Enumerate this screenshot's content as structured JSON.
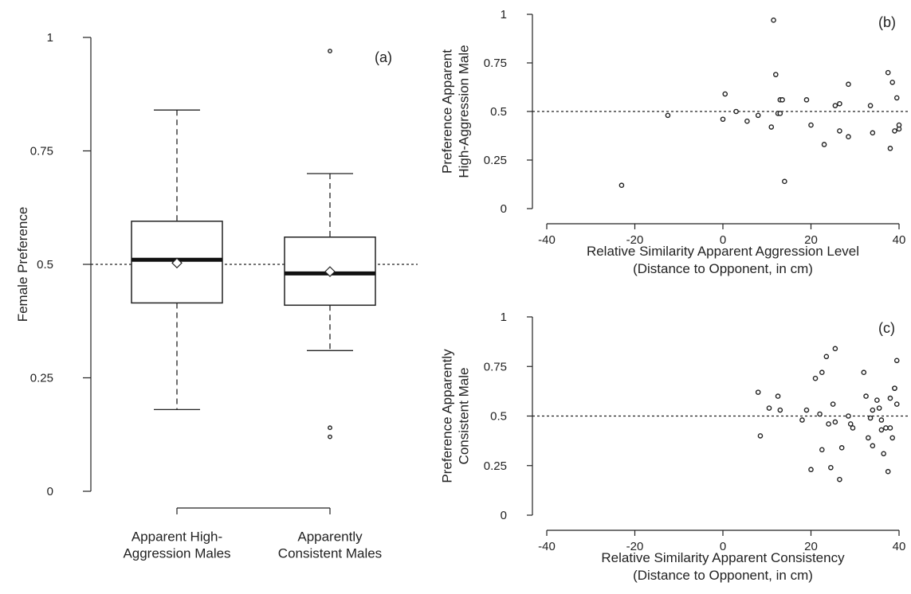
{
  "chart_data": [
    {
      "type": "box",
      "panel_label": "(a)",
      "xlabel": "",
      "ylabel": "Female Preference",
      "ylim": [
        0,
        1
      ],
      "yticks": [
        "0",
        "0.25",
        "0.5",
        "0.75",
        "1"
      ],
      "reference_line": 0.5,
      "categories": [
        [
          "Apparent High-",
          "Aggression Males"
        ],
        [
          "Apparently",
          "Consistent Males"
        ]
      ],
      "boxes": [
        {
          "min": 0.18,
          "q1": 0.415,
          "median": 0.51,
          "mean": 0.503,
          "q3": 0.595,
          "max": 0.84,
          "outliers": []
        },
        {
          "min": 0.31,
          "q1": 0.41,
          "median": 0.48,
          "mean": 0.484,
          "q3": 0.56,
          "max": 0.7,
          "outliers": [
            0.97,
            0.14,
            0.12
          ]
        }
      ]
    },
    {
      "type": "scatter",
      "panel_label": "(b)",
      "xlabel": [
        "Relative Similarity Apparent Aggression Level",
        "(Distance to Opponent, in cm)"
      ],
      "ylabel": [
        "Preference Apparent",
        "High-Aggression Male"
      ],
      "xlim": [
        -40,
        40
      ],
      "ylim": [
        0,
        1
      ],
      "xticks": [
        "-40",
        "-20",
        "0",
        "20",
        "40"
      ],
      "yticks": [
        "0",
        "0.25",
        "0.5",
        "0.75",
        "1"
      ],
      "reference_line": 0.5,
      "points": [
        [
          -23,
          0.12
        ],
        [
          -12.5,
          0.48
        ],
        [
          0,
          0.46
        ],
        [
          0.5,
          0.59
        ],
        [
          3,
          0.5
        ],
        [
          5.5,
          0.45
        ],
        [
          8,
          0.48
        ],
        [
          11,
          0.42
        ],
        [
          11.5,
          0.97
        ],
        [
          12,
          0.69
        ],
        [
          12.5,
          0.49
        ],
        [
          13,
          0.49
        ],
        [
          13,
          0.56
        ],
        [
          13.5,
          0.56
        ],
        [
          14,
          0.14
        ],
        [
          19,
          0.56
        ],
        [
          20,
          0.43
        ],
        [
          23,
          0.33
        ],
        [
          25.5,
          0.53
        ],
        [
          26.5,
          0.54
        ],
        [
          26.5,
          0.4
        ],
        [
          28.5,
          0.37
        ],
        [
          28.5,
          0.64
        ],
        [
          33.5,
          0.53
        ],
        [
          34,
          0.39
        ],
        [
          37.5,
          0.7
        ],
        [
          38,
          0.31
        ],
        [
          38.5,
          0.65
        ],
        [
          39,
          0.4
        ],
        [
          39.5,
          0.57
        ],
        [
          40,
          0.41
        ],
        [
          40,
          0.43
        ]
      ]
    },
    {
      "type": "scatter",
      "panel_label": "(c)",
      "xlabel": [
        "Relative Similarity Apparent Consistency",
        "(Distance to Opponent, in cm)"
      ],
      "ylabel": [
        "Preference Apparently",
        "Consistent Male"
      ],
      "xlim": [
        -40,
        40
      ],
      "ylim": [
        0,
        1
      ],
      "xticks": [
        "-40",
        "-20",
        "0",
        "20",
        "40"
      ],
      "yticks": [
        "0",
        "0.25",
        "0.5",
        "0.75",
        "1"
      ],
      "reference_line": 0.5,
      "points": [
        [
          8,
          0.62
        ],
        [
          8.5,
          0.4
        ],
        [
          10.5,
          0.54
        ],
        [
          12.5,
          0.6
        ],
        [
          13,
          0.53
        ],
        [
          18,
          0.48
        ],
        [
          19,
          0.53
        ],
        [
          20,
          0.23
        ],
        [
          21,
          0.69
        ],
        [
          22,
          0.51
        ],
        [
          22.5,
          0.33
        ],
        [
          22.5,
          0.72
        ],
        [
          23.5,
          0.8
        ],
        [
          24,
          0.46
        ],
        [
          24.5,
          0.24
        ],
        [
          25,
          0.56
        ],
        [
          25.5,
          0.84
        ],
        [
          25.5,
          0.47
        ],
        [
          26.5,
          0.18
        ],
        [
          27,
          0.34
        ],
        [
          28.5,
          0.5
        ],
        [
          29,
          0.46
        ],
        [
          29.5,
          0.44
        ],
        [
          32,
          0.72
        ],
        [
          32.5,
          0.6
        ],
        [
          33,
          0.39
        ],
        [
          33.5,
          0.49
        ],
        [
          34,
          0.53
        ],
        [
          34,
          0.35
        ],
        [
          35,
          0.58
        ],
        [
          35.5,
          0.54
        ],
        [
          36,
          0.43
        ],
        [
          36,
          0.48
        ],
        [
          36.5,
          0.31
        ],
        [
          37,
          0.44
        ],
        [
          37.5,
          0.22
        ],
        [
          38,
          0.44
        ],
        [
          38,
          0.59
        ],
        [
          38.5,
          0.39
        ],
        [
          39,
          0.64
        ],
        [
          39,
          0.64
        ],
        [
          39.5,
          0.56
        ],
        [
          39.5,
          0.78
        ]
      ]
    }
  ]
}
